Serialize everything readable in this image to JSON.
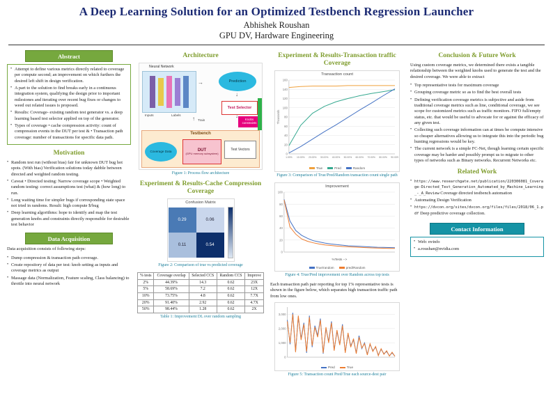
{
  "header": {
    "title": "A Deep Learning Solution for an Optimized Testbench Regression Launcher",
    "author": "Abhishek Roushan",
    "affiliation": "GPU DV, Hardware Engineering"
  },
  "abstract": {
    "heading": "Abstract",
    "bullets": [
      "Attempt to define various metrics directly related to coverage per compute second; an improvement on which furthers the desired left shift in design verification.",
      "A part to the solution to find breaks early in a continuous integration system, qualifying the design prior to important milestones and iterating over recent bug fixes or changes to weed out related issues is proposed.",
      "Results: Coverage- existing random test generator vs. a deep learning based test selector applied on top of the generator.",
      "Types of coverage • cache compression activity: count of compression events in the DUT per test & • Transaction path coverage: number of transactions for specific data path."
    ]
  },
  "motivation": {
    "heading": "Motivation",
    "bullets": [
      "Random test run (without bias) fair for unknown DUT bug hot spots. (With bias) Verification solutions today dabble between directed and weighted random testing.",
      "Caveat • Directed testing: Narrow coverage scope • Weighted random testing: correct assumptions test (what) & (how long) to run.",
      "Long waiting time for simpler bugs if corresponding state space not tried in randoms. Result: high compute $/bug",
      "Deep learning algorithms: hope to identify and map the test generation knobs and constraints directly responsible for desirable test behavior"
    ]
  },
  "data_acquisition": {
    "heading": "Data Acquisition",
    "intro": "Data acquisition consists of following steps:",
    "bullets": [
      "Dump compression & transaction path coverage.",
      "Create repository of data per test: knob setting as inputs and coverage metrics as output",
      "Massage data (Normalization, Feature scaling, Class balancing) to throttle into neural network"
    ]
  },
  "architecture": {
    "heading": "Architecture",
    "figure1_caption": "Figure 1: Process flow architecture",
    "diagram": {
      "neural_network": "Neural Network",
      "prediction": "Prediction",
      "test_selector": "Test Selector",
      "train": "Train",
      "inputs": "Inputs",
      "labels": "Labels",
      "knobs": "Knobs constraints",
      "testbench": "Testbench",
      "coverage_data": "Coverage Data",
      "dut": "DUT",
      "dut_sub": "(GPU memory subsystem)",
      "test_vectors": "Test Vectors"
    }
  },
  "cache_results": {
    "heading": "Experiment & Results-Cache Compression Coverage",
    "figure2_caption": "Figure 2: Comparison of true vs predicted coverage",
    "table_caption": "Table 1: Improvement DL over random sampling",
    "table": {
      "columns": [
        "% tests",
        "Coverage overlap",
        "Selected CCS",
        "Random CCS",
        "Improve"
      ],
      "rows": [
        [
          "2%",
          "44.39%",
          "14.3",
          "0.62",
          "23X"
        ],
        [
          "5%",
          "58.69%",
          "7.2",
          "0.62",
          "12X"
        ],
        [
          "10%",
          "73.75%",
          "4.8",
          "0.62",
          "7.7X"
        ],
        [
          "20%",
          "91.40%",
          "2.92",
          "0.62",
          "4.7X"
        ],
        [
          "50%",
          "98.44%",
          "1.28",
          "0.62",
          "2X"
        ]
      ]
    }
  },
  "traffic_results": {
    "heading": "Experiment & Results-Transaction traffic Coverage",
    "figure3_caption": "Figure 3: Comparison of True/Pred/Random transaction count single path",
    "figure4_caption": "Figure 4: True/Pred improvement over Random across top tests",
    "paragraph": "Each transaction path pair reporting for top 1% representative tests is shown in the figure below, which separates high transaction traffic path from low ones.",
    "figure5_caption": "Figure 5: Transaction count Pred/True each source-dest pair"
  },
  "conclusion": {
    "heading": "Conclusion & Future Work",
    "intro": "Using custom coverage metrics, we determined there exists a tangible relationship between the weighted knobs used to generate the test and the desired coverage. We were able to extract",
    "bullets": [
      "Top representative tests for maximum coverage",
      "Grouping coverage metric so as to find the best overall tests",
      "Defining verification coverage metrics is subjective and aside from traditional coverage metrics such as line, conditional coverage, we see scope for customized metrics such as traffic monitors. FIFO full/empty status, etc. that would be useful to advocate for or against the efficacy of any given test.",
      "Collecting such coverage information can at times be compute intensive so cheaper alternatives allowing us to integrate this into the periodic bug hunting regressions would be key.",
      "The current network is a simple FC-Net, though learning certain specific coverage may be harder and possibly prompt us to migrate to other types of networks such as Binary networks. Recurrent Networks etc."
    ]
  },
  "related_work": {
    "heading": "Related Work",
    "items": [
      {
        "url": "https://www.researchgate.net/publication/220306081_Coverage-Directed_Test_Generation_Automated_by_Machine_Learning_-_A_Review",
        "text": "Coverage directed testbench automation"
      },
      {
        "text": "Automating Design Verification"
      },
      {
        "url": "https://dvcon.org/sites/dvcon.org/files/files/2018/06_1.pdf",
        "text": "Deep predictive coverage collection."
      }
    ]
  },
  "contact": {
    "heading": "Contact Information",
    "items": [
      "Web: nvinfo",
      "a.roushan@nvidia.com"
    ]
  },
  "chart_data": [
    {
      "id": "fig2",
      "type": "heatmap",
      "title": "Confusion Matrix",
      "values": [
        [
          0.29,
          0.06
        ],
        [
          0.11,
          0.54
        ]
      ],
      "colors": [
        [
          "#4a7ab5",
          "#c9d6ec"
        ],
        [
          "#a9bfdd",
          "#0d2f6b"
        ]
      ],
      "row_labels": [
        "0",
        "1"
      ],
      "col_labels": [
        "0",
        "1"
      ]
    },
    {
      "id": "fig3",
      "type": "line",
      "title": "Transaction count",
      "ylabel": "Thousands",
      "xlabel": "",
      "ymin": 0,
      "ymax": 160,
      "yticks": [
        0,
        20,
        40,
        60,
        80,
        100,
        120,
        140,
        160
      ],
      "xtick_labels": [
        "1.00%",
        "10.00%",
        "20.00%",
        "30.00%",
        "40.00%",
        "50.00%",
        "60.00%",
        "70.00%",
        "80.00%",
        "90.00%"
      ],
      "legend_position": "bottom",
      "series": [
        {
          "name": "True",
          "color": "#f0a13c",
          "values": [
            144,
            146,
            147,
            147,
            147,
            148,
            148,
            148,
            148,
            148
          ]
        },
        {
          "name": "Pred",
          "color": "#34a88f",
          "values": [
            18,
            62,
            88,
            103,
            113,
            120,
            126,
            131,
            135,
            139
          ]
        },
        {
          "name": "Random",
          "color": "#4472c4",
          "values": [
            2,
            16,
            32,
            48,
            63,
            79,
            95,
            110,
            126,
            141
          ]
        }
      ]
    },
    {
      "id": "fig4",
      "type": "line",
      "title": "Improvement",
      "ylabel": "",
      "xlabel": "%Tests -->",
      "ymin": 0,
      "ymax": 100,
      "yticks": [
        0,
        20,
        40,
        60,
        80,
        100
      ],
      "xtick_labels": [],
      "legend_position": "bottom",
      "series": [
        {
          "name": "True/random",
          "color": "#4472c4",
          "values": [
            88,
            52,
            36,
            28,
            23,
            19,
            17,
            15,
            13.5,
            12.5,
            11.5,
            10.5,
            10,
            9.5,
            9,
            8.5,
            8,
            7.8,
            7.5,
            7.2
          ]
        },
        {
          "name": "pred/Random",
          "color": "#ed7d31",
          "values": [
            87,
            42,
            30,
            22,
            18,
            15.5,
            13.5,
            12,
            11,
            10,
            9.3,
            8.8,
            8.3,
            7.8,
            7.4,
            7,
            6.7,
            6.4,
            6.2,
            6
          ]
        }
      ]
    },
    {
      "id": "fig5",
      "type": "line",
      "title": "",
      "ylabel": "",
      "xlabel": "",
      "ymin": 0,
      "ymax": 3500,
      "yticks": [
        0,
        1000,
        2000,
        3000
      ],
      "ytick_labels": [
        "0",
        "1,000",
        "2,000",
        "3,000"
      ],
      "xtick_labels": [],
      "legend_position": "bottom",
      "series": [
        {
          "name": "Pred",
          "color": "#4472c4",
          "values": [
            2600,
            900,
            3100,
            400,
            2800,
            1300,
            2400,
            300,
            2900,
            700,
            2200,
            1500,
            2700,
            250,
            2000,
            1100,
            2500,
            500,
            1800,
            900,
            2300,
            350,
            1600,
            800,
            1200,
            300,
            1500,
            600,
            1000,
            200,
            900,
            450,
            700,
            150,
            550,
            250,
            400,
            100,
            300,
            80
          ]
        },
        {
          "name": "True",
          "color": "#ed7d31",
          "values": [
            2500,
            1000,
            3000,
            350,
            2900,
            1200,
            2300,
            400,
            2800,
            800,
            2100,
            1400,
            2600,
            300,
            2100,
            1000,
            2400,
            450,
            1900,
            850,
            2200,
            300,
            1700,
            700,
            1300,
            250,
            1400,
            650,
            950,
            150,
            950,
            400,
            750,
            100,
            600,
            200,
            450,
            80,
            350,
            60
          ]
        }
      ]
    }
  ]
}
